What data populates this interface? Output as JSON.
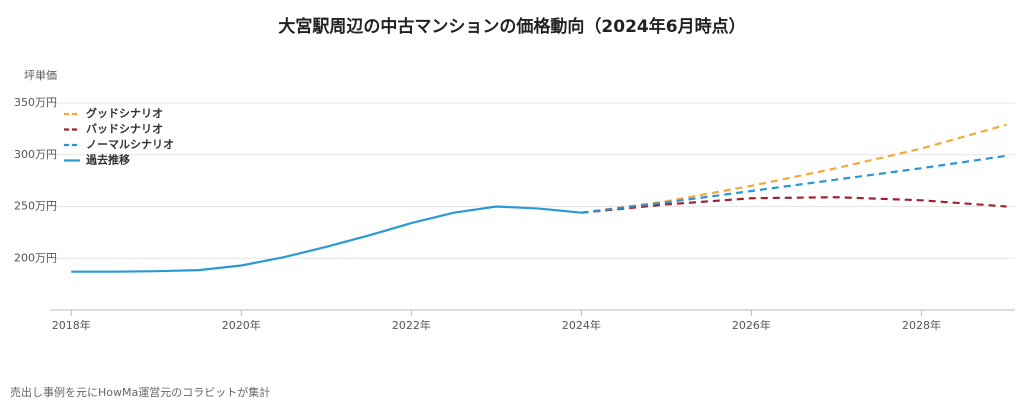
{
  "chart_data": {
    "type": "line",
    "title": "大宮駅周辺の中古マンションの価格動向（2024年6月時点）",
    "y_label": "坪単価",
    "note": "売出し事例を元にHowMa運営元のコラビットが集計",
    "xlim": [
      2017.75,
      2029.1
    ],
    "xticks": [
      {
        "value": 2018,
        "label": "2018年"
      },
      {
        "value": 2020,
        "label": "2020年"
      },
      {
        "value": 2022,
        "label": "2022年"
      },
      {
        "value": 2024,
        "label": "2024年"
      },
      {
        "value": 2026,
        "label": "2026年"
      },
      {
        "value": 2028,
        "label": "2028年"
      }
    ],
    "ylim": [
      150,
      350
    ],
    "yticks": [
      {
        "value": 200,
        "label": "200万円"
      },
      {
        "value": 250,
        "label": "250万円"
      },
      {
        "value": 300,
        "label": "300万円"
      },
      {
        "value": 350,
        "label": "350万円"
      }
    ],
    "grid": true,
    "legend": "top-left",
    "series": [
      {
        "name": "グッドシナリオ",
        "color": "#f5a93a",
        "dashed": true,
        "x": [
          2024,
          2025,
          2026,
          2027,
          2028,
          2029
        ],
        "values": [
          244,
          255,
          270,
          287,
          306,
          329
        ]
      },
      {
        "name": "バッドシナリオ",
        "color": "#a3202f",
        "dashed": true,
        "x": [
          2024,
          2025,
          2026,
          2027,
          2028,
          2029
        ],
        "values": [
          244,
          252,
          258,
          259,
          256,
          250
        ]
      },
      {
        "name": "ノーマルシナリオ",
        "color": "#2a94d4",
        "dashed": true,
        "x": [
          2024,
          2025,
          2026,
          2027,
          2028,
          2029
        ],
        "values": [
          244,
          254,
          265,
          276,
          287,
          299
        ]
      },
      {
        "name": "過去推移",
        "color": "#2a9ad6",
        "dashed": false,
        "x": [
          2018,
          2018.5,
          2019,
          2019.5,
          2020,
          2020.5,
          2021,
          2021.5,
          2022,
          2022.5,
          2023,
          2023.5,
          2024
        ],
        "values": [
          187,
          187,
          187.5,
          188.5,
          193,
          201,
          211,
          222,
          234,
          244,
          250,
          248,
          244
        ]
      }
    ]
  }
}
